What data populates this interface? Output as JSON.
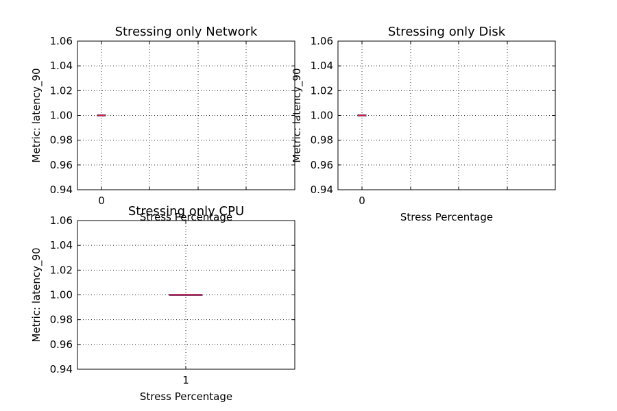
{
  "chart_data": [
    {
      "type": "box",
      "title": "Stressing only Network",
      "xlabel": "Stress Percentage",
      "ylabel": "Metric: latency_90",
      "ylim": [
        0.94,
        1.06
      ],
      "yticks": [
        "0.94",
        "0.96",
        "0.98",
        "1.00",
        "1.02",
        "1.04",
        "1.06"
      ],
      "categories": [
        "0"
      ],
      "values": [
        1.0
      ],
      "grid": true,
      "box_color": "#d62728"
    },
    {
      "type": "box",
      "title": "Stressing only Disk",
      "xlabel": "Stress Percentage",
      "ylabel": "Metric: latency_90",
      "ylim": [
        0.94,
        1.06
      ],
      "yticks": [
        "0.94",
        "0.96",
        "0.98",
        "1.00",
        "1.02",
        "1.04",
        "1.06"
      ],
      "categories": [
        "0"
      ],
      "values": [
        1.0
      ],
      "grid": true,
      "box_color": "#d62728"
    },
    {
      "type": "box",
      "title": "Stressing only CPU",
      "xlabel": "Stress Percentage",
      "ylabel": "Metric: latency_90",
      "ylim": [
        0.94,
        1.06
      ],
      "yticks": [
        "0.94",
        "0.96",
        "0.98",
        "1.00",
        "1.02",
        "1.04",
        "1.06"
      ],
      "categories": [
        "1"
      ],
      "values": [
        1.0
      ],
      "grid": true,
      "box_color": "#d62728"
    }
  ]
}
